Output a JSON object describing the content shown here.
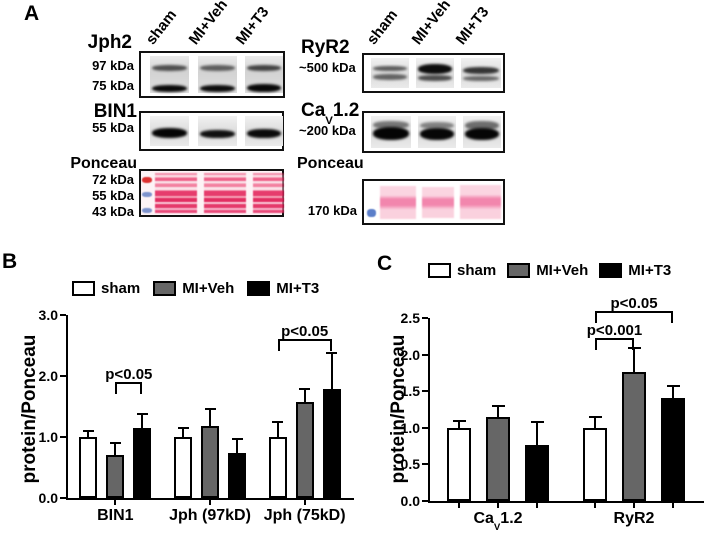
{
  "panel_a": {
    "label": "A",
    "lane_labels": [
      "sham",
      "MI+Veh",
      "MI+T3"
    ],
    "left": {
      "jph2_label": "Jph2",
      "jph2_markers": [
        "97 kDa",
        "75 kDa"
      ],
      "bin1_label": "BIN1",
      "bin1_marker": "55 kDa",
      "ponceau_label": "Ponceau",
      "ponceau_markers": [
        "72 kDa",
        "55 kDa",
        "43 kDa"
      ]
    },
    "right": {
      "ryr2_label": "RyR2",
      "ryr2_marker": "~500 kDa",
      "cav_label_pre": "Ca",
      "cav_label_sub": "V",
      "cav_label_post": "1.2",
      "cav_marker": "~200 kDa",
      "ponceau_label": "Ponceau",
      "ponceau_marker": "170 kDa"
    }
  },
  "panel_b": {
    "label": "B"
  },
  "panel_c": {
    "label": "C"
  },
  "colors": {
    "sham": "#ffffff",
    "mi_veh": "#666666",
    "mi_t3": "#000000",
    "ponceau_red": "#e23a64",
    "ponceau_pink": "#f2a0bd",
    "marker_red": "#dd3030",
    "marker_blue": "#7d92cc"
  },
  "chart_data": [
    {
      "type": "bar",
      "panel": "B",
      "title": "",
      "xlabel": "",
      "ylabel": "protein/Ponceau",
      "ylim": [
        0,
        3.0
      ],
      "yticks": [
        0.0,
        1.0,
        2.0,
        3.0
      ],
      "ytick_labels": [
        "0.0",
        "1.0",
        "2.0",
        "3.0"
      ],
      "grid": false,
      "legend_position": "top",
      "categories": [
        "BIN1",
        "Jph (97kD)",
        "Jph (75kD)"
      ],
      "series": [
        {
          "name": "sham",
          "color": "#ffffff",
          "values": [
            1.0,
            1.0,
            1.0
          ],
          "errors": [
            0.12,
            0.17,
            0.27
          ]
        },
        {
          "name": "MI+Veh",
          "color": "#666666",
          "values": [
            0.7,
            1.18,
            1.58
          ],
          "errors": [
            0.21,
            0.3,
            0.23
          ]
        },
        {
          "name": "MI+T3",
          "color": "#000000",
          "values": [
            1.14,
            0.74,
            1.78
          ],
          "errors": [
            0.25,
            0.25,
            0.62
          ]
        }
      ],
      "significance": [
        {
          "label": "p<0.05",
          "category": 0,
          "from_series": 1,
          "to_series": 2,
          "y": 1.9
        },
        {
          "label": "p<0.05",
          "category": 2,
          "from_series": 0,
          "to_series": 2,
          "y": 2.6
        }
      ]
    },
    {
      "type": "bar",
      "panel": "C",
      "title": "",
      "xlabel": "",
      "ylabel": "protein/Ponceau",
      "ylim": [
        0,
        2.5
      ],
      "yticks": [
        0.0,
        0.5,
        1.0,
        1.5,
        2.0,
        2.5
      ],
      "ytick_labels": [
        "0.0",
        "0.5",
        "1.0",
        "1.5",
        "2.0",
        "2.5"
      ],
      "grid": false,
      "legend_position": "top",
      "categories": [
        [
          {
            "t": "Ca"
          },
          {
            "t": "V",
            "sub": true
          },
          {
            "t": "1.2"
          }
        ],
        [
          {
            "t": "RyR2"
          }
        ]
      ],
      "series": [
        {
          "name": "sham",
          "color": "#ffffff",
          "values": [
            1.0,
            1.0
          ],
          "errors": [
            0.1,
            0.16
          ]
        },
        {
          "name": "MI+Veh",
          "color": "#666666",
          "values": [
            1.15,
            1.76
          ],
          "errors": [
            0.16,
            0.34
          ]
        },
        {
          "name": "MI+T3",
          "color": "#000000",
          "values": [
            0.76,
            1.41
          ],
          "errors": [
            0.33,
            0.17
          ]
        }
      ],
      "significance": [
        {
          "label": "p<0.001",
          "category": 1,
          "from_series": 0,
          "to_series": 1,
          "y": 2.23
        },
        {
          "label": "p<0.05",
          "category": 1,
          "from_series": 0,
          "to_series": 2,
          "y": 2.6
        }
      ]
    }
  ]
}
